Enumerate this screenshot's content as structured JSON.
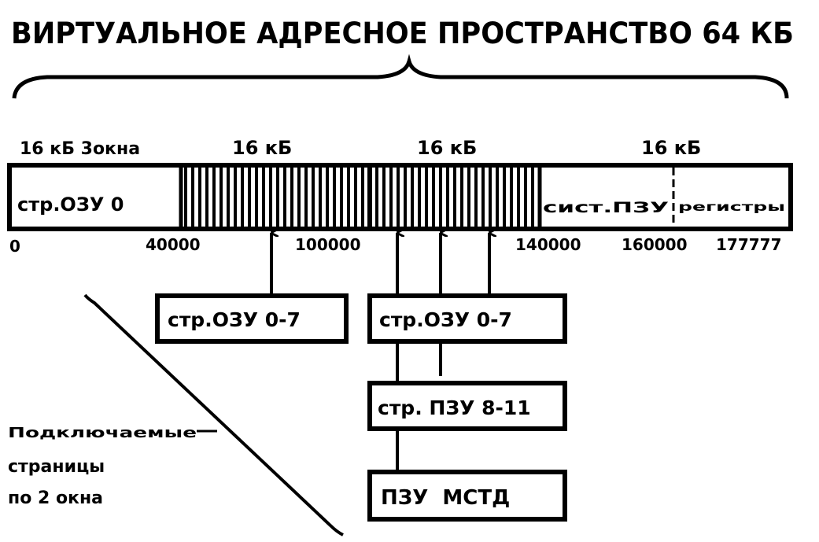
{
  "title": "ВИРТУАЛЬНОЕ АДРЕСНОЕ ПРОСТРАНСТВО 64 КБ",
  "segment_labels": [
    "16 кБ 3окна",
    "16 кБ",
    "16 кБ",
    "16 кБ"
  ],
  "bar": {
    "page0": "стр.ОЗУ 0",
    "system_rom": "сист.ПЗУ",
    "registers": "регистры"
  },
  "addresses": [
    "0",
    "40000",
    "100000",
    "140000",
    "160000",
    "177777"
  ],
  "boxes": {
    "ram_pages_a": "стр.ОЗУ 0-7",
    "ram_pages_b": "стр.ОЗУ 0-7",
    "rom_pages": "стр. ПЗУ 8-11",
    "rom_mstd": "ПЗУ  МСТД"
  },
  "note": [
    "Подключаемые",
    "страницы",
    "по 2 окна"
  ]
}
